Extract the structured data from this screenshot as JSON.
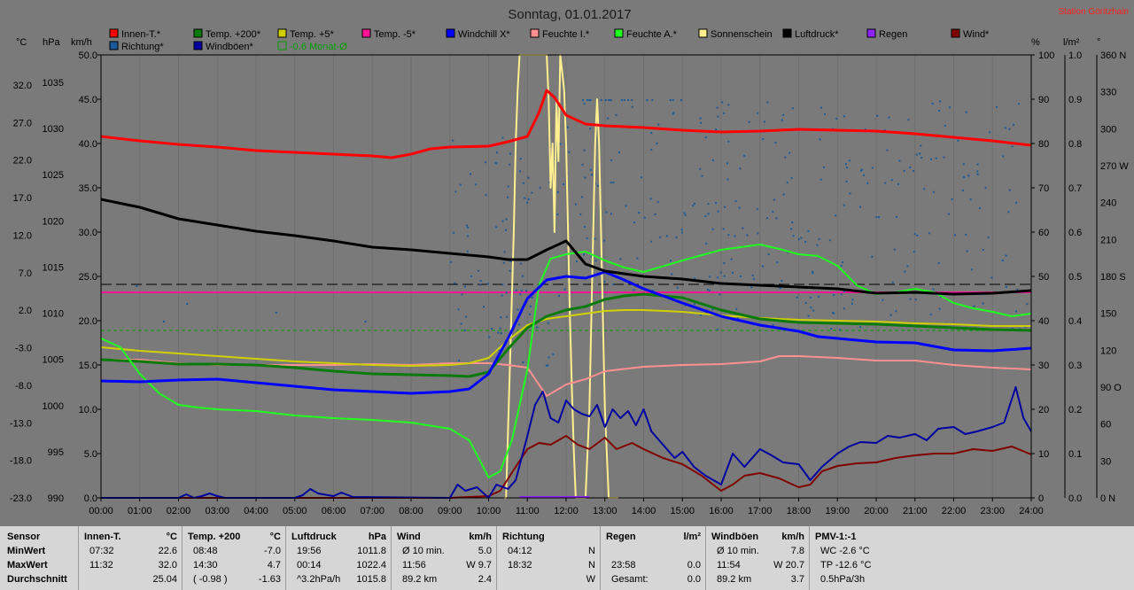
{
  "title": "Sonntag, 01.01.2017",
  "station": "Station Göritzhain",
  "colors": {
    "bg": "#7a7a7a",
    "plot": "#7a7a7a",
    "panel": "#d6d6d6",
    "title": "#1a1a1a",
    "station": "#ff2020"
  },
  "legend": [
    {
      "label": "Innen-T.*",
      "color": "#ff0000"
    },
    {
      "label": "Temp. +200*",
      "color": "#0a7a0a"
    },
    {
      "label": "Temp. +5*",
      "color": "#d0d000"
    },
    {
      "label": "Temp. -5*",
      "color": "#ff1493"
    },
    {
      "label": "Windchill X*",
      "color": "#0000ff"
    },
    {
      "label": "Feuchte I.*",
      "color": "#ff9090"
    },
    {
      "label": "Feuchte A.*",
      "color": "#20ff20"
    },
    {
      "label": "Sonnenschein",
      "color": "#ffef90"
    },
    {
      "label": "Luftdruck*",
      "color": "#000000"
    },
    {
      "label": "Regen",
      "color": "#9020ff"
    },
    {
      "label": "Wind*",
      "color": "#800000"
    },
    {
      "label": "Richtung*",
      "color": "#1a5a9a"
    },
    {
      "label": "Windböen*",
      "color": "#0000a0"
    },
    {
      "label": "-0.6 Monat-Ø",
      "color": "#00a000"
    }
  ],
  "axis_units": {
    "c": "°C",
    "hpa": "hPa",
    "kmh": "km/h",
    "pct": "%",
    "lm2": "l/m²",
    "deg": "°"
  },
  "chart_data": {
    "type": "line",
    "xlabel": "",
    "x_ticks": [
      "00:00",
      "01:00",
      "02:00",
      "03:00",
      "04:00",
      "05:00",
      "06:00",
      "07:00",
      "08:00",
      "09:00",
      "10:00",
      "11:00",
      "12:00",
      "13:00",
      "14:00",
      "15:00",
      "16:00",
      "17:00",
      "18:00",
      "19:00",
      "20:00",
      "21:00",
      "22:00",
      "23:00",
      "24:00"
    ],
    "xlim": [
      0,
      24
    ],
    "y_kmh_ticks": [
      "50.0",
      "45.0",
      "40.0",
      "35.0",
      "30.0",
      "25.0",
      "20.0",
      "15.0",
      "10.0",
      "5.0",
      "0.0"
    ],
    "y_temp_ticks": [
      "32.0",
      "27.0",
      "22.0",
      "17.0",
      "12.0",
      "7.0",
      "2.0",
      "-3.0",
      "-8.0",
      "-13.0",
      "-18.0",
      "-23.0"
    ],
    "y_hpa_ticks": [
      "1035",
      "1030",
      "1025",
      "1020",
      "1015",
      "1010",
      "1005",
      "1000",
      "995",
      "990"
    ],
    "y_pct_ticks": [
      "100",
      "90",
      "80",
      "70",
      "60",
      "50",
      "40",
      "30",
      "20",
      "10",
      "0"
    ],
    "y_rain_ticks": [
      "1.0",
      "0.9",
      "0.8",
      "0.7",
      "0.6",
      "0.5",
      "0.4",
      "0.3",
      "0.2",
      "0.1",
      "0.0"
    ],
    "y_dir_ticks": [
      "360 N",
      "330",
      "300",
      "270 W",
      "240",
      "210",
      "180 S",
      "150",
      "120",
      "90 O",
      "60",
      "30",
      "0 N"
    ],
    "ylim_kmh": [
      0,
      50
    ],
    "ref_lines": [
      {
        "name": "Temp. -5 level",
        "y_kmh": 23.2,
        "color": "#ff1493"
      },
      {
        "name": "dashed black",
        "y_kmh": 24.1,
        "color": "#000000"
      },
      {
        "name": "Monat-Ø dashed",
        "y_kmh": 18.9,
        "color": "#00a000"
      }
    ],
    "series": [
      {
        "name": "Innen-T.*",
        "color": "#ff0000",
        "width": 3,
        "x": [
          0,
          1,
          2,
          3,
          4,
          5,
          6,
          7,
          7.5,
          8,
          8.5,
          9,
          10,
          10.5,
          11,
          11.3,
          11.5,
          11.7,
          12,
          12.5,
          13,
          14,
          15,
          16,
          17,
          18,
          19,
          20,
          21,
          22,
          23,
          24
        ],
        "y": [
          40.8,
          40.3,
          39.9,
          39.6,
          39.2,
          39.0,
          38.8,
          38.6,
          38.4,
          38.8,
          39.4,
          39.6,
          39.7,
          40.2,
          40.8,
          43.5,
          46.0,
          45.2,
          43.2,
          42.2,
          42.0,
          41.8,
          41.5,
          41.3,
          41.4,
          41.6,
          41.5,
          41.4,
          41.1,
          40.7,
          40.3,
          39.8
        ]
      },
      {
        "name": "Luftdruck*",
        "color": "#000000",
        "width": 3,
        "x": [
          0,
          1,
          2,
          3,
          4,
          5,
          6,
          7,
          8,
          9,
          10,
          10.5,
          11,
          11.5,
          12,
          12.5,
          13,
          14,
          15,
          16,
          17,
          18,
          19,
          20,
          21,
          22,
          23,
          24
        ],
        "y": [
          33.7,
          32.8,
          31.5,
          30.8,
          30.1,
          29.6,
          29.0,
          28.3,
          28.0,
          27.6,
          27.2,
          26.9,
          26.9,
          28.0,
          29.0,
          26.4,
          25.6,
          25.0,
          24.7,
          24.2,
          24.0,
          23.8,
          23.6,
          23.1,
          23.2,
          23.0,
          23.1,
          23.4
        ]
      },
      {
        "name": "Feuchte A.*",
        "color": "#20ff20",
        "width": 2,
        "x": [
          0,
          0.5,
          1,
          1.5,
          2,
          2.5,
          3,
          4,
          5,
          6,
          7,
          8,
          9,
          9.5,
          9.8,
          10,
          10.3,
          10.6,
          11,
          11.3,
          11.6,
          12,
          12.5,
          13,
          13.5,
          14,
          15,
          16,
          17,
          17.5,
          18,
          18.5,
          19,
          19.5,
          20,
          20.5,
          21,
          21.5,
          22,
          22.5,
          23,
          23.5,
          24
        ],
        "y": [
          18.0,
          17.0,
          14.0,
          11.8,
          10.5,
          10.2,
          10.0,
          9.8,
          9.3,
          9.0,
          8.8,
          8.5,
          7.8,
          6.5,
          4.0,
          2.3,
          3.0,
          6.5,
          14.5,
          24.0,
          27.0,
          27.5,
          27.8,
          26.8,
          26.0,
          25.5,
          26.8,
          28.0,
          28.6,
          28.1,
          27.5,
          27.3,
          26.2,
          24.0,
          23.0,
          23.2,
          23.6,
          23.2,
          22.0,
          21.4,
          21.0,
          20.5,
          20.8
        ]
      },
      {
        "name": "Windchill X*",
        "color": "#0000ff",
        "width": 3,
        "x": [
          0,
          1,
          2,
          3,
          4,
          5,
          6,
          7,
          8,
          9,
          9.5,
          10,
          10.5,
          11,
          11.5,
          12,
          12.5,
          13,
          13.5,
          14,
          15,
          16,
          17,
          18,
          18.5,
          19,
          20,
          21,
          22,
          23,
          24
        ],
        "y": [
          13.2,
          13.1,
          13.3,
          13.4,
          13.0,
          12.6,
          12.2,
          12.0,
          11.8,
          12.0,
          12.3,
          14.0,
          18.0,
          22.5,
          24.6,
          25.0,
          24.8,
          25.5,
          24.6,
          23.6,
          22.0,
          20.5,
          19.5,
          18.8,
          18.2,
          18.0,
          17.6,
          17.5,
          16.7,
          16.6,
          16.9
        ]
      },
      {
        "name": "Temp. +200*",
        "color": "#0a7a0a",
        "width": 3,
        "x": [
          0,
          1,
          2,
          3,
          4,
          5,
          6,
          7,
          8,
          9,
          9.5,
          10,
          10.5,
          11,
          11.5,
          12,
          12.5,
          13,
          13.5,
          14,
          15,
          16,
          17,
          18,
          19,
          20,
          21,
          22,
          23,
          24
        ],
        "y": [
          15.6,
          15.4,
          15.1,
          15.1,
          15.0,
          14.7,
          14.3,
          14.0,
          13.9,
          13.8,
          13.7,
          14.2,
          16.8,
          19.2,
          20.5,
          21.2,
          21.6,
          22.4,
          22.8,
          23.0,
          22.6,
          21.2,
          20.2,
          19.8,
          19.7,
          19.6,
          19.4,
          19.2,
          19.0,
          18.9
        ]
      },
      {
        "name": "Temp. +5*",
        "color": "#d0d000",
        "width": 2,
        "x": [
          0,
          1,
          2,
          3,
          4,
          5,
          6,
          7,
          8,
          9,
          9.5,
          10,
          10.5,
          11,
          11.5,
          12,
          12.5,
          13,
          13.5,
          14,
          15,
          16,
          17,
          18,
          19,
          20,
          21,
          22,
          23,
          24
        ],
        "y": [
          17.0,
          16.6,
          16.3,
          16.0,
          15.7,
          15.4,
          15.2,
          15.0,
          14.9,
          15.0,
          15.2,
          15.8,
          17.8,
          19.5,
          20.2,
          20.5,
          20.8,
          21.1,
          21.2,
          21.2,
          21.0,
          20.6,
          20.3,
          20.1,
          20.0,
          19.9,
          19.7,
          19.6,
          19.4,
          19.4
        ]
      },
      {
        "name": "Feuchte I.*",
        "color": "#ff9090",
        "width": 2,
        "x": [
          0,
          1,
          2,
          3,
          4,
          5,
          6,
          7,
          8,
          9,
          10,
          10.5,
          11,
          11.5,
          12,
          12.5,
          13,
          14,
          15,
          16,
          17,
          17.5,
          18,
          19,
          20,
          21,
          22,
          23,
          24
        ],
        "y": [
          15.6,
          15.6,
          15.2,
          15.0,
          15.0,
          15.0,
          15.0,
          15.1,
          15.0,
          15.2,
          15.2,
          15.0,
          14.7,
          11.5,
          12.8,
          13.4,
          14.3,
          14.8,
          15.0,
          15.1,
          15.4,
          16.0,
          16.0,
          15.8,
          15.5,
          15.5,
          15.0,
          14.7,
          14.5
        ]
      },
      {
        "name": "Wind*",
        "color": "#800000",
        "width": 2,
        "x": [
          0,
          9,
          10,
          10.3,
          10.7,
          11,
          11.3,
          11.6,
          12,
          12.3,
          12.6,
          13,
          13.3,
          13.7,
          14,
          14.5,
          15,
          15.5,
          16,
          16.3,
          16.6,
          17,
          17.5,
          18,
          18.3,
          18.6,
          19,
          19.5,
          20,
          20.5,
          21,
          21.5,
          22,
          22.5,
          23,
          23.5,
          24
        ],
        "y": [
          0,
          0,
          0.2,
          0.8,
          3.5,
          5.5,
          6.2,
          6.0,
          7.0,
          6.0,
          5.5,
          6.8,
          5.5,
          6.2,
          5.5,
          4.5,
          3.8,
          2.5,
          0.8,
          1.5,
          2.5,
          2.8,
          2.2,
          1.2,
          1.5,
          3.0,
          3.6,
          3.9,
          4.0,
          4.5,
          4.8,
          5.0,
          5.0,
          5.5,
          5.3,
          5.8,
          4.9
        ]
      },
      {
        "name": "Windböen*",
        "color": "#0000a0",
        "width": 2,
        "x": [
          0,
          2,
          2.2,
          2.4,
          2.6,
          2.8,
          3,
          3.2,
          4,
          5,
          5.2,
          5.4,
          5.6,
          6,
          6.2,
          6.5,
          9,
          9.2,
          9.4,
          9.7,
          10,
          10.2,
          10.5,
          10.7,
          11,
          11.2,
          11.4,
          11.6,
          11.8,
          12,
          12.2,
          12.4,
          12.6,
          12.8,
          13,
          13.2,
          13.4,
          13.6,
          13.8,
          14,
          14.2,
          14.5,
          14.8,
          15,
          15.3,
          15.6,
          16,
          16.3,
          16.6,
          17,
          17.3,
          17.6,
          18,
          18.3,
          18.6,
          19,
          19.3,
          19.6,
          20,
          20.3,
          20.6,
          21,
          21.3,
          21.6,
          22,
          22.3,
          22.6,
          23,
          23.3,
          23.6,
          23.8,
          24
        ],
        "y": [
          0,
          0,
          0.4,
          0,
          0.2,
          0.5,
          0.2,
          0,
          0,
          0,
          0.3,
          1.0,
          0.5,
          0.2,
          0.6,
          0.1,
          0,
          1.5,
          0.8,
          1.2,
          0,
          1.5,
          1.0,
          2.0,
          7.0,
          10.5,
          12.0,
          9.0,
          8.5,
          11.0,
          10.0,
          9.5,
          9.2,
          10.5,
          8.0,
          10.0,
          9.0,
          9.8,
          8.2,
          10.0,
          7.5,
          6.0,
          4.5,
          5.2,
          3.5,
          2.5,
          1.5,
          5.0,
          3.5,
          5.5,
          4.8,
          4.0,
          3.8,
          2.0,
          3.5,
          5.0,
          5.8,
          6.3,
          6.2,
          7.0,
          6.8,
          7.2,
          6.5,
          7.8,
          8.0,
          7.2,
          7.5,
          8.0,
          8.5,
          12.5,
          9.0,
          7.5
        ]
      },
      {
        "name": "Sonnenschein",
        "color": "#ffef90",
        "width": 2,
        "x": [
          10.4,
          10.45,
          10.55,
          10.65,
          10.7,
          10.75,
          10.8,
          10.85,
          10.9,
          11.2,
          11.5,
          11.55,
          11.6,
          11.65,
          11.7,
          11.75,
          11.8,
          11.85,
          11.9,
          11.95,
          12.0,
          12.05,
          12.1,
          12.15,
          12.2,
          12.25,
          12.3,
          12.35,
          12.4,
          12.45,
          12.5,
          12.55,
          12.6,
          12.65,
          12.7,
          12.75,
          12.8,
          12.85,
          12.9,
          12.95,
          13.0,
          13.05,
          13.1,
          13.15,
          13.2,
          13.25,
          13.3,
          13.35
        ],
        "y": [
          0,
          0,
          15,
          30,
          40,
          46,
          50,
          50,
          50,
          50,
          50,
          45,
          35,
          40,
          30,
          45,
          38,
          50,
          48,
          46,
          40,
          30,
          20,
          12,
          5,
          0,
          0,
          0,
          0,
          0,
          0,
          5,
          10,
          20,
          30,
          40,
          45,
          40,
          30,
          20,
          10,
          5,
          0,
          0,
          0,
          0,
          0,
          0
        ]
      },
      {
        "name": "Regen",
        "color": "#9020ff",
        "width": 2,
        "x": [
          10.8,
          12.6
        ],
        "y": [
          0.1,
          0.1
        ]
      }
    ]
  },
  "stats": {
    "row_labels": [
      "Sensor",
      "MinWert",
      "MaxWert",
      "Durchschnitt"
    ],
    "cols": [
      {
        "h1": "Innen-T.",
        "h2": "°C",
        "rows": [
          [
            "07:32",
            "22.6"
          ],
          [
            "11:32",
            "32.0"
          ],
          [
            "",
            "25.04"
          ]
        ]
      },
      {
        "h1": "Temp. +200",
        "h2": "°C",
        "rows": [
          [
            "08:48",
            "-7.0"
          ],
          [
            "14:30",
            "4.7"
          ],
          [
            "( -0.98 )",
            "-1.63"
          ]
        ]
      },
      {
        "h1": "Luftdruck",
        "h2": "hPa",
        "rows": [
          [
            "19:56",
            "1011.8"
          ],
          [
            "00:14",
            "1022.4"
          ],
          [
            "^3.2hPa/h",
            "1015.8"
          ]
        ]
      },
      {
        "h1": "Wind",
        "h2": "km/h",
        "rows": [
          [
            "Ø 10 min.",
            "5.0"
          ],
          [
            "11:56",
            "W 9.7"
          ],
          [
            "89.2 km",
            "2.4"
          ]
        ]
      },
      {
        "h1": "Richtung",
        "h2": "",
        "rows": [
          [
            "04:12",
            "N"
          ],
          [
            "18:32",
            "N"
          ],
          [
            "",
            "W"
          ]
        ]
      },
      {
        "h1": "Regen",
        "h2": "l/m²",
        "rows": [
          [
            "",
            ""
          ],
          [
            "23:58",
            "0.0"
          ],
          [
            "Gesamt:",
            "0.0"
          ]
        ]
      },
      {
        "h1": "Windböen",
        "h2": "km/h",
        "rows": [
          [
            "Ø 10 min.",
            "7.8"
          ],
          [
            "11:54",
            "W 20.7"
          ],
          [
            "89.2 km",
            "3.7"
          ]
        ]
      },
      {
        "h1": "PMV-1:-1",
        "h2": "",
        "rows": [
          [
            "WC -2.6 °C",
            ""
          ],
          [
            "TP -12.6 °C",
            ""
          ],
          [
            "0.5hPa/3h",
            ""
          ]
        ]
      }
    ]
  }
}
